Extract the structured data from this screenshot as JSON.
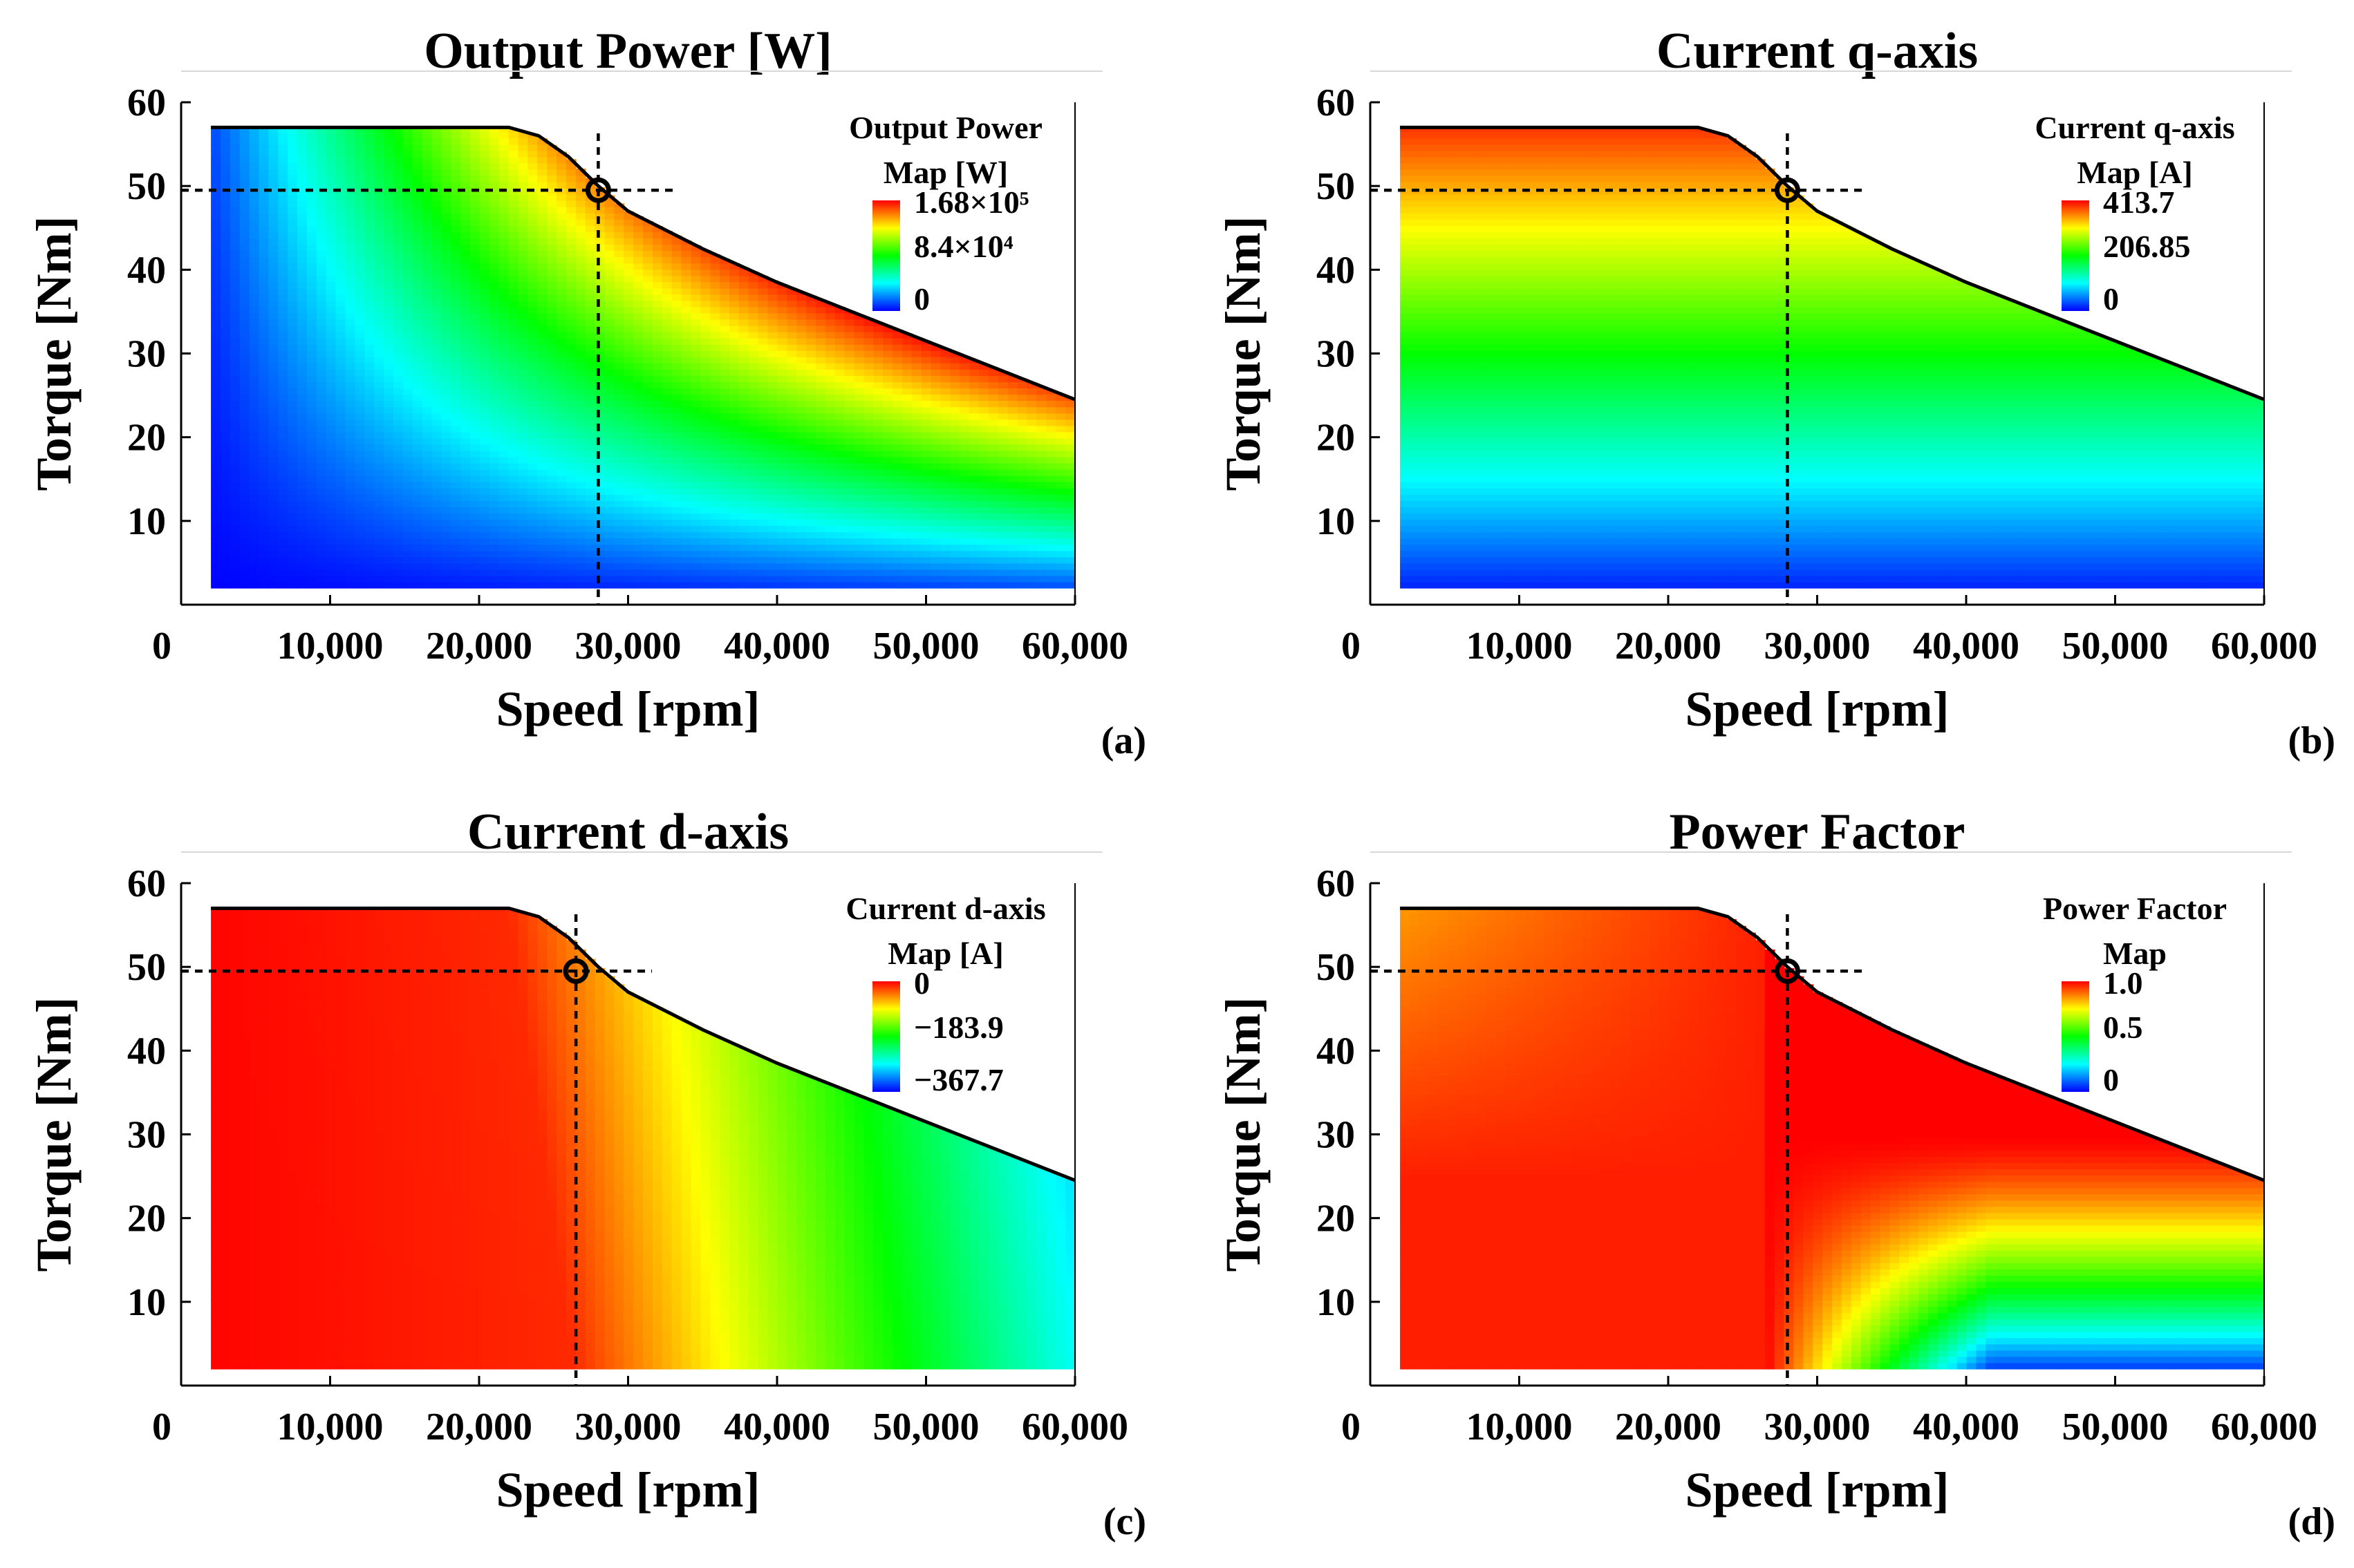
{
  "figure": {
    "caption_labels": [
      "(a)",
      "(b)",
      "(c)",
      "(d)"
    ]
  },
  "chart_data": [
    {
      "type": "heatmap",
      "id": "a",
      "title": "Output Power [W]",
      "xlabel": "Speed [rpm]",
      "ylabel": "Torque [Nm]",
      "xlim": [
        0,
        60000
      ],
      "ylim": [
        0,
        60
      ],
      "xticks": [
        "0",
        "10,000",
        "20,000",
        "30,000",
        "40,000",
        "50,000",
        "60,000"
      ],
      "yticks": [
        "10",
        "20",
        "30",
        "40",
        "50",
        "60"
      ],
      "legend": {
        "title_line1": "Output Power",
        "title_line2": "Map [W]",
        "max": "1.68×10⁵",
        "mid": "8.4×10⁴",
        "min": "0"
      },
      "field": "power",
      "operating_point": {
        "speed": 28000,
        "torque": 49.5
      },
      "panel_label": "(a)"
    },
    {
      "type": "heatmap",
      "id": "b",
      "title": "Current q-axis",
      "xlabel": "Speed [rpm]",
      "ylabel": "Torque [Nm]",
      "xlim": [
        0,
        60000
      ],
      "ylim": [
        0,
        60
      ],
      "xticks": [
        "0",
        "10,000",
        "20,000",
        "30,000",
        "40,000",
        "50,000",
        "60,000"
      ],
      "yticks": [
        "10",
        "20",
        "30",
        "40",
        "50",
        "60"
      ],
      "legend": {
        "title_line1": "Current q-axis",
        "title_line2": "Map [A]",
        "max": "413.7",
        "mid": "206.85",
        "min": "0"
      },
      "field": "iq",
      "operating_point": {
        "speed": 28000,
        "torque": 49.5
      },
      "panel_label": "(b)"
    },
    {
      "type": "heatmap",
      "id": "c",
      "title": "Current d-axis",
      "xlabel": "Speed [rpm]",
      "ylabel": "Torque [Nm]",
      "xlim": [
        0,
        60000
      ],
      "ylim": [
        0,
        60
      ],
      "xticks": [
        "0",
        "10,000",
        "20,000",
        "30,000",
        "40,000",
        "50,000",
        "60,000"
      ],
      "yticks": [
        "10",
        "20",
        "30",
        "40",
        "50",
        "60"
      ],
      "legend": {
        "title_line1": "Current d-axis",
        "title_line2": "Map [A]",
        "max": "0",
        "mid": "−183.9",
        "min": "−367.7"
      },
      "field": "id",
      "operating_point": {
        "speed": 26500,
        "torque": 49.5
      },
      "panel_label": "(c)"
    },
    {
      "type": "heatmap",
      "id": "d",
      "title": "Power Factor",
      "xlabel": "Speed [rpm]",
      "ylabel": "Torque [Nm]",
      "xlim": [
        0,
        60000
      ],
      "ylim": [
        0,
        60
      ],
      "xticks": [
        "0",
        "10,000",
        "20,000",
        "30,000",
        "40,000",
        "50,000",
        "60,000"
      ],
      "yticks": [
        "10",
        "20",
        "30",
        "40",
        "50",
        "60"
      ],
      "legend": {
        "title_line1": "Power Factor",
        "title_line2": "Map",
        "max": "1.0",
        "mid": "0.5",
        "min": "0"
      },
      "field": "pf",
      "operating_point": {
        "speed": 28000,
        "torque": 49.5
      },
      "panel_label": "(d)"
    }
  ],
  "envelope": {
    "speed_min": 2000,
    "torque_min": 2,
    "boundary": [
      [
        2000,
        57
      ],
      [
        22000,
        57
      ],
      [
        24000,
        56
      ],
      [
        26000,
        53.5
      ],
      [
        28000,
        50
      ],
      [
        30000,
        47
      ],
      [
        35000,
        42.5
      ],
      [
        40000,
        38.5
      ],
      [
        45000,
        35
      ],
      [
        50000,
        31.5
      ],
      [
        55000,
        28
      ],
      [
        60000,
        24.5
      ]
    ]
  },
  "colors": {
    "colormap": [
      "#0000ff",
      "#00ffff",
      "#00ff00",
      "#ffff00",
      "#ff0000"
    ],
    "boundary": "#000000",
    "marker": "#000000"
  }
}
